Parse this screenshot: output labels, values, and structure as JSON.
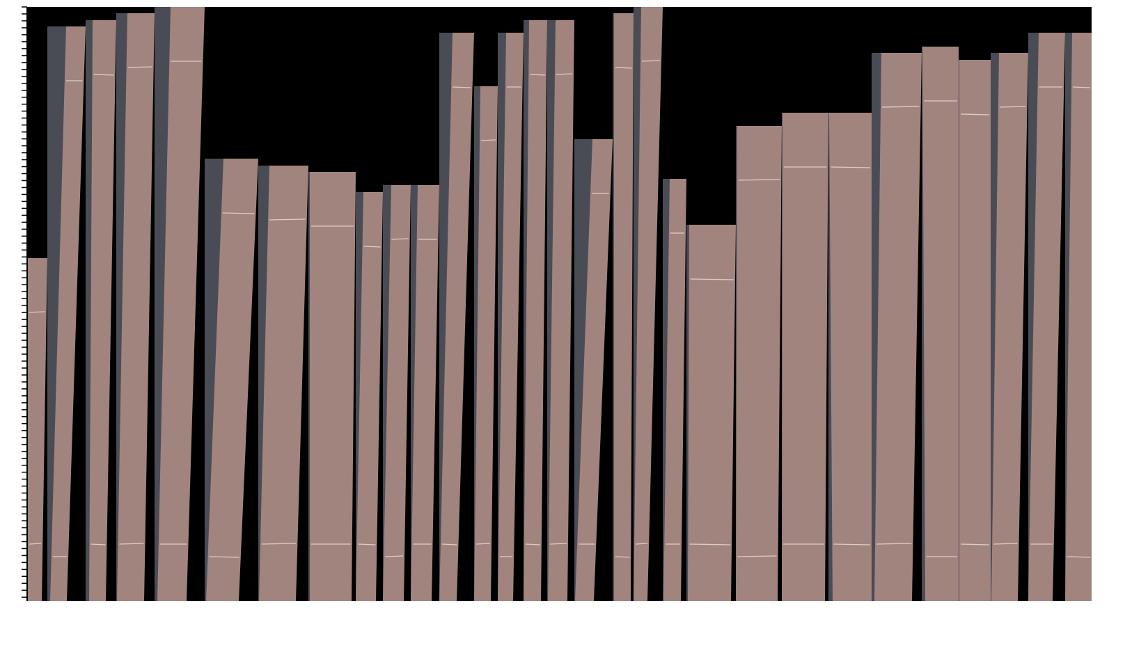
{
  "colors": {
    "background": "#ffffff",
    "backdrop": "#000000",
    "gap": "#4a4c55",
    "veneer": "#a2847f",
    "seam": "#e6dcdc",
    "ruler": "#000000"
  }
}
